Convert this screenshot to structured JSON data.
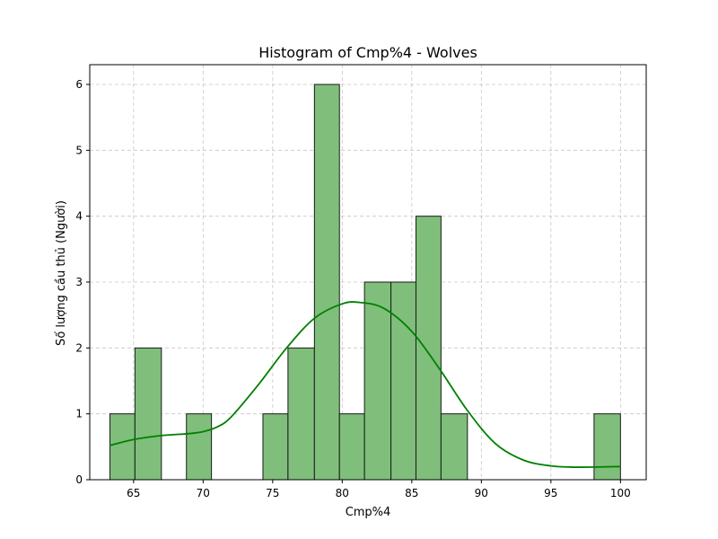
{
  "chart_data": {
    "type": "bar",
    "title": "Histogram of Cmp%4 - Wolves",
    "xlabel": "Cmp%4",
    "ylabel": "Số lượng cầu thủ (Người)",
    "xlim": [
      61.85,
      101.85
    ],
    "ylim": [
      0,
      6.3
    ],
    "xticks": [
      65,
      70,
      75,
      80,
      85,
      90,
      95,
      100
    ],
    "yticks": [
      0,
      1,
      2,
      3,
      4,
      5,
      6
    ],
    "grid": true,
    "bar_color": "#7fbf7b",
    "bar_edge_color": "#1a1a1a",
    "kde_color": "#008000",
    "bins": [
      {
        "start": 63.3,
        "end": 65.1,
        "count": 1
      },
      {
        "start": 65.1,
        "end": 67.0,
        "count": 2
      },
      {
        "start": 67.0,
        "end": 68.8,
        "count": 0
      },
      {
        "start": 68.8,
        "end": 70.6,
        "count": 1
      },
      {
        "start": 70.6,
        "end": 72.5,
        "count": 0
      },
      {
        "start": 72.5,
        "end": 74.3,
        "count": 0
      },
      {
        "start": 74.3,
        "end": 76.1,
        "count": 1
      },
      {
        "start": 76.1,
        "end": 78.0,
        "count": 2
      },
      {
        "start": 78.0,
        "end": 79.8,
        "count": 6
      },
      {
        "start": 79.8,
        "end": 81.6,
        "count": 1
      },
      {
        "start": 81.6,
        "end": 83.5,
        "count": 3
      },
      {
        "start": 83.5,
        "end": 85.3,
        "count": 3
      },
      {
        "start": 85.3,
        "end": 87.1,
        "count": 4
      },
      {
        "start": 87.1,
        "end": 89.0,
        "count": 1
      },
      {
        "start": 89.0,
        "end": 90.8,
        "count": 0
      },
      {
        "start": 90.8,
        "end": 92.6,
        "count": 0
      },
      {
        "start": 92.6,
        "end": 94.5,
        "count": 0
      },
      {
        "start": 94.5,
        "end": 96.3,
        "count": 0
      },
      {
        "start": 96.3,
        "end": 98.1,
        "count": 0
      },
      {
        "start": 98.1,
        "end": 100.0,
        "count": 1
      }
    ],
    "kde": {
      "x": [
        63.3,
        65,
        67,
        69,
        70,
        71,
        72,
        74,
        76,
        78,
        80,
        81.3,
        83,
        85,
        87,
        89,
        91,
        93,
        95,
        97,
        100
      ],
      "y": [
        0.52,
        0.61,
        0.67,
        0.7,
        0.73,
        0.8,
        0.95,
        1.45,
        2.0,
        2.45,
        2.67,
        2.69,
        2.6,
        2.25,
        1.68,
        1.05,
        0.55,
        0.3,
        0.21,
        0.19,
        0.2
      ]
    }
  }
}
